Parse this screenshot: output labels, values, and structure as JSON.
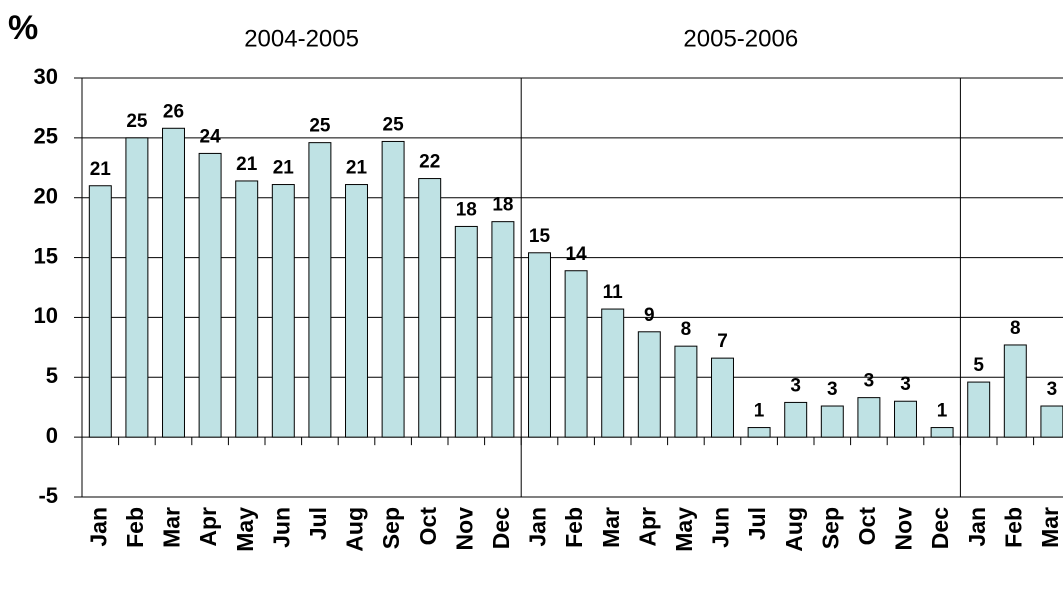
{
  "chart_data": {
    "type": "bar",
    "y_label": "%",
    "groups": [
      "2004-2005",
      "2005-2006"
    ],
    "categories": [
      "Jan",
      "Feb",
      "Mar",
      "Apr",
      "May",
      "Jun",
      "Jul",
      "Aug",
      "Sep",
      "Oct",
      "Nov",
      "Dec",
      "Jan",
      "Feb",
      "Mar",
      "Apr",
      "May",
      "Jun",
      "Jul",
      "Aug",
      "Sep",
      "Oct",
      "Nov",
      "Dec",
      "Jan",
      "Feb",
      "Mar"
    ],
    "values": [
      21.0,
      25.0,
      25.8,
      23.7,
      21.4,
      21.1,
      24.6,
      21.1,
      24.7,
      21.6,
      17.6,
      18.0,
      15.4,
      13.9,
      10.7,
      8.8,
      7.6,
      6.6,
      0.8,
      2.9,
      2.6,
      3.3,
      3.0,
      0.8,
      4.6,
      7.7,
      2.6
    ],
    "value_labels": [
      "21",
      "25",
      "26",
      "24",
      "21",
      "21",
      "25",
      "21",
      "25",
      "22",
      "18",
      "18",
      "15",
      "14",
      "11",
      "9",
      "8",
      "7",
      "1",
      "3",
      "3",
      "3",
      "3",
      "1",
      "5",
      "8",
      "3"
    ],
    "color": "#bfe2e4",
    "ylim": [
      -5,
      30
    ],
    "yticks": [
      -5,
      0,
      5,
      10,
      15,
      20,
      25,
      30
    ],
    "grid": true
  }
}
